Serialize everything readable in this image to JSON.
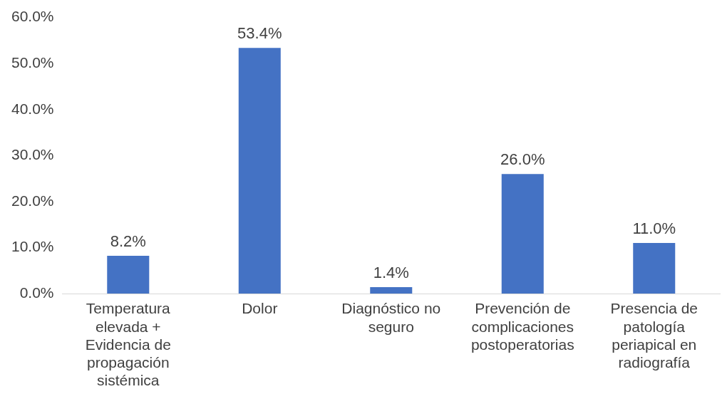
{
  "chart_data": {
    "type": "bar",
    "categories": [
      "Temperatura elevada + Evidencia de propagación sistémica",
      "Dolor",
      "Diagnóstico no seguro",
      "Prevención de complicaciones postoperatorias",
      "Presencia de patología periapical en radiografía"
    ],
    "values": [
      8.2,
      53.4,
      1.4,
      26.0,
      11.0
    ],
    "value_labels": [
      "8.2%",
      "53.4%",
      "1.4%",
      "26.0%",
      "11.0%"
    ],
    "color": "#4472c4",
    "ylim": [
      0,
      60
    ],
    "yticks": [
      {
        "value": 0,
        "label": "0.0%"
      },
      {
        "value": 10,
        "label": "10.0%"
      },
      {
        "value": 20,
        "label": "20.0%"
      },
      {
        "value": 30,
        "label": "30.0%"
      },
      {
        "value": 40,
        "label": "40.0%"
      },
      {
        "value": 50,
        "label": "50.0%"
      },
      {
        "value": 60,
        "label": "60.0%"
      }
    ],
    "grid": false,
    "legend": false
  }
}
